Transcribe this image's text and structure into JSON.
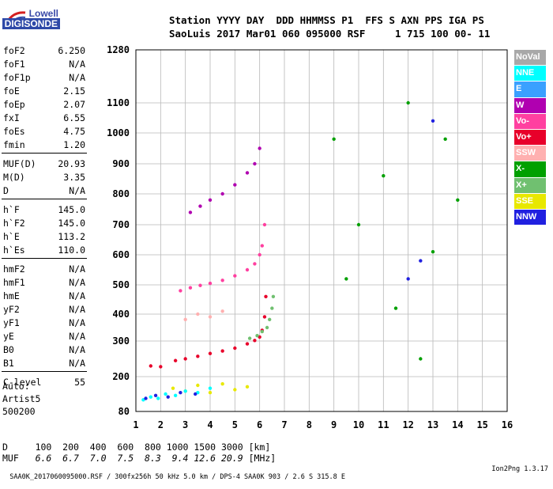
{
  "logo": {
    "line1": "Lowell",
    "line2": "DIGISONDE"
  },
  "header": {
    "labels": "Station YYYY DAY  DDD HHMMSS P1  FFS S AXN PPS IGA PS",
    "values": "SaoLuis 2017 Mar01 060 095000 RSF     1 715 100 00- 11"
  },
  "params": [
    {
      "k": "foF2",
      "v": "6.250"
    },
    {
      "k": "foF1",
      "v": "N/A"
    },
    {
      "k": "foF1p",
      "v": "N/A"
    },
    {
      "k": "foE",
      "v": "2.15"
    },
    {
      "k": "foEp",
      "v": "2.07"
    },
    {
      "k": "fxI",
      "v": "6.55"
    },
    {
      "k": "foEs",
      "v": "4.75"
    },
    {
      "k": "fmin",
      "v": "1.20"
    },
    {
      "k": "MUF(D)",
      "v": "20.93"
    },
    {
      "k": "M(D)",
      "v": "3.35"
    },
    {
      "k": "D",
      "v": "N/A"
    },
    {
      "k": "h`F",
      "v": "145.0"
    },
    {
      "k": "h`F2",
      "v": "145.0"
    },
    {
      "k": "h`E",
      "v": "113.2"
    },
    {
      "k": "h`Es",
      "v": "110.0"
    },
    {
      "k": "hmF2",
      "v": "N/A"
    },
    {
      "k": "hmF1",
      "v": "N/A"
    },
    {
      "k": "hmE",
      "v": "N/A"
    },
    {
      "k": "yF2",
      "v": "N/A"
    },
    {
      "k": "yF1",
      "v": "N/A"
    },
    {
      "k": "yE",
      "v": "N/A"
    },
    {
      "k": "B0",
      "v": "N/A"
    },
    {
      "k": "B1",
      "v": "N/A"
    },
    {
      "k": "C-level",
      "v": "55"
    }
  ],
  "auto": {
    "line1": "Auto:",
    "line2": "Artist5",
    "line3": "500200"
  },
  "legend": [
    {
      "label": "NoVal",
      "color": "#a8a8a8"
    },
    {
      "label": "NNE",
      "color": "#00ffff"
    },
    {
      "label": "E",
      "color": "#3aa0ff"
    },
    {
      "label": "W",
      "color": "#b000b0"
    },
    {
      "label": "Vo-",
      "color": "#ff40a0"
    },
    {
      "label": "Vo+",
      "color": "#e8002a"
    },
    {
      "label": "SSW",
      "color": "#ffb0b0"
    },
    {
      "label": "X-",
      "color": "#00a000"
    },
    {
      "label": "X+",
      "color": "#70c070"
    },
    {
      "label": "SSE",
      "color": "#e8e800"
    },
    {
      "label": "NNW",
      "color": "#2020e0"
    }
  ],
  "dtable": {
    "d_label": "D",
    "d_values": "100  200  400  600  800 1000 1500 3000 [km]",
    "muf_label": "MUF",
    "muf_values": "6.6  6.7  7.0  7.5  8.3  9.4 12.6 20.9",
    "muf_unit": "[MHz]"
  },
  "footer": {
    "left": "SAA0K_2017060095000.RSF / 300fx256h 50 kHz 5.0 km / DPS-4 SAA0K 903 / 2.6 S 315.8 E",
    "right": "Ion2Png 1.3.17"
  },
  "chart_data": {
    "type": "scatter",
    "x_ticks": [
      "1",
      "2",
      "3",
      "4",
      "5",
      "6",
      "7",
      "8",
      "9",
      "10",
      "11",
      "12",
      "13",
      "14",
      "15",
      "16"
    ],
    "y_ticks": [
      "80",
      "200",
      "300",
      "400",
      "500",
      "600",
      "700",
      "800",
      "900",
      "1000",
      "1100",
      "1280"
    ],
    "xlim": [
      1,
      16
    ],
    "ylim": [
      80,
      1280
    ],
    "grid": true,
    "series": [
      {
        "name": "Vo+",
        "color": "#e8002a",
        "x": [
          1.6,
          2.0,
          2.6,
          3.0,
          3.5,
          4.0,
          4.5,
          5.0,
          5.5,
          5.8,
          6.0,
          6.1,
          6.2,
          6.25
        ],
        "y": [
          230,
          228,
          245,
          250,
          257,
          265,
          272,
          280,
          292,
          302,
          315,
          340,
          390,
          460
        ]
      },
      {
        "name": "Vo-",
        "color": "#ff40a0",
        "x": [
          2.8,
          3.2,
          3.6,
          4.0,
          4.5,
          5.0,
          5.5,
          5.8,
          6.0,
          6.1,
          6.2
        ],
        "y": [
          480,
          490,
          498,
          505,
          515,
          530,
          550,
          570,
          600,
          630,
          700
        ]
      },
      {
        "name": "W",
        "color": "#b000b0",
        "x": [
          3.2,
          3.6,
          4.0,
          4.5,
          5.0,
          5.5,
          5.8,
          6.0
        ],
        "y": [
          740,
          760,
          780,
          800,
          830,
          870,
          900,
          950
        ]
      },
      {
        "name": "X+",
        "color": "#70c070",
        "x": [
          5.6,
          5.9,
          6.1,
          6.3,
          6.4,
          6.5,
          6.55
        ],
        "y": [
          310,
          320,
          335,
          350,
          380,
          420,
          460
        ]
      },
      {
        "name": "SSE",
        "color": "#e8e800",
        "x": [
          2.5,
          3.0,
          3.5,
          4.0,
          4.5,
          5.0,
          5.5
        ],
        "y": [
          160,
          150,
          170,
          145,
          175,
          155,
          165
        ]
      },
      {
        "name": "NNE",
        "color": "#00ffff",
        "x": [
          1.3,
          1.6,
          1.9,
          2.2,
          2.6,
          3.0,
          3.5,
          4.0
        ],
        "y": [
          120,
          130,
          125,
          140,
          135,
          150,
          145,
          160
        ]
      },
      {
        "name": "NNW",
        "color": "#2020e0",
        "x": [
          1.4,
          1.8,
          2.3,
          2.8,
          3.4,
          12.0,
          12.5,
          13.0
        ],
        "y": [
          125,
          135,
          130,
          145,
          140,
          520,
          580,
          1040
        ]
      },
      {
        "name": "X-",
        "color": "#00a000",
        "x": [
          9.0,
          9.5,
          10.0,
          11.0,
          11.5,
          12.0,
          12.5,
          13.0,
          13.5,
          14.0
        ],
        "y": [
          980,
          520,
          700,
          860,
          420,
          1100,
          250,
          610,
          980,
          780
        ]
      },
      {
        "name": "SSW",
        "color": "#ffb0b0",
        "x": [
          3.0,
          3.5,
          4.0,
          4.5
        ],
        "y": [
          380,
          400,
          390,
          410
        ]
      }
    ]
  }
}
